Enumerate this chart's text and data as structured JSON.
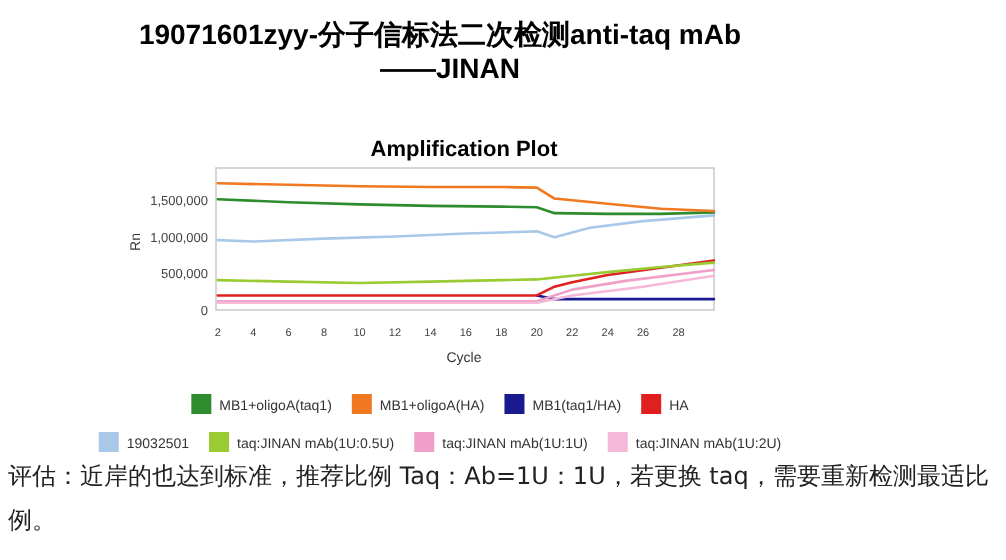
{
  "chart_data": {
    "type": "line",
    "title": "Amplification Plot",
    "xlabel": "Cycle",
    "ylabel": "Rn",
    "annotations": [
      "19071601zyy-分子信标法二次检测anti-taq mAb",
      "——JINAN",
      "评估：近岸的也达到标准，推荐比例 Taq：Ab=1U：1U，若更换 taq，需要重新检测最适比例。"
    ],
    "xlim": [
      1.9,
      30
    ],
    "xticks": [
      2,
      4,
      6,
      8,
      10,
      12,
      14,
      16,
      18,
      20,
      22,
      24,
      26,
      28
    ],
    "ylim": [
      0,
      1950000
    ],
    "yticks": [
      {
        "value": 0,
        "label": "0"
      },
      {
        "value": 500000,
        "label": "500,000"
      },
      {
        "value": 1000000,
        "label": "1,000,000"
      },
      {
        "value": 1500000,
        "label": "1,500,000"
      }
    ],
    "legend": "bottom",
    "marker": "none",
    "line_style": "solid",
    "series": [
      {
        "name": "MB1+oligoA(taq1)",
        "color": "#2e8b2e",
        "x": [
          2,
          6,
          10,
          14,
          18,
          20,
          21,
          24,
          27,
          30
        ],
        "values": [
          1520000,
          1480000,
          1450000,
          1430000,
          1420000,
          1410000,
          1330000,
          1320000,
          1320000,
          1340000
        ]
      },
      {
        "name": "MB1+oligoA(HA)",
        "color": "#f07820",
        "x": [
          2,
          6,
          10,
          14,
          18,
          20,
          21,
          24,
          27,
          30
        ],
        "values": [
          1740000,
          1720000,
          1700000,
          1690000,
          1690000,
          1680000,
          1530000,
          1460000,
          1390000,
          1360000
        ]
      },
      {
        "name": "MB1(taq1/HA)",
        "color": "#1a1a90",
        "x": [
          20,
          21,
          24,
          27,
          30
        ],
        "values": [
          200000,
          150000,
          150000,
          150000,
          150000
        ]
      },
      {
        "name": "HA",
        "color": "#e02020",
        "x": [
          2,
          6,
          10,
          14,
          18,
          20,
          21,
          22,
          24,
          27,
          30
        ],
        "values": [
          200000,
          200000,
          200000,
          200000,
          200000,
          200000,
          320000,
          380000,
          480000,
          580000,
          680000
        ]
      },
      {
        "name": "19032501",
        "color": "#a8c8e8",
        "x": [
          2,
          4,
          8,
          12,
          16,
          20,
          21,
          23,
          26,
          30
        ],
        "values": [
          960000,
          940000,
          980000,
          1010000,
          1050000,
          1080000,
          1000000,
          1130000,
          1220000,
          1300000
        ]
      },
      {
        "name": "taq:JINAN mAb(1U:0.5U)",
        "color": "#99cc33",
        "x": [
          2,
          6,
          10,
          14,
          18,
          20,
          22,
          24,
          27,
          30
        ],
        "values": [
          410000,
          390000,
          370000,
          390000,
          410000,
          420000,
          470000,
          520000,
          590000,
          650000
        ]
      },
      {
        "name": "taq:JINAN mAb(1U:1U)",
        "color": "#f0a0c8",
        "x": [
          2,
          6,
          10,
          14,
          18,
          20,
          22,
          25,
          30
        ],
        "values": [
          120000,
          120000,
          120000,
          120000,
          120000,
          120000,
          280000,
          400000,
          550000
        ]
      },
      {
        "name": "taq:JINAN mAb(1U:2U)",
        "color": "#f5b8d8",
        "x": [
          2,
          6,
          10,
          14,
          18,
          20,
          22,
          26,
          30
        ],
        "values": [
          100000,
          100000,
          100000,
          100000,
          100000,
          100000,
          200000,
          320000,
          470000
        ]
      }
    ]
  }
}
